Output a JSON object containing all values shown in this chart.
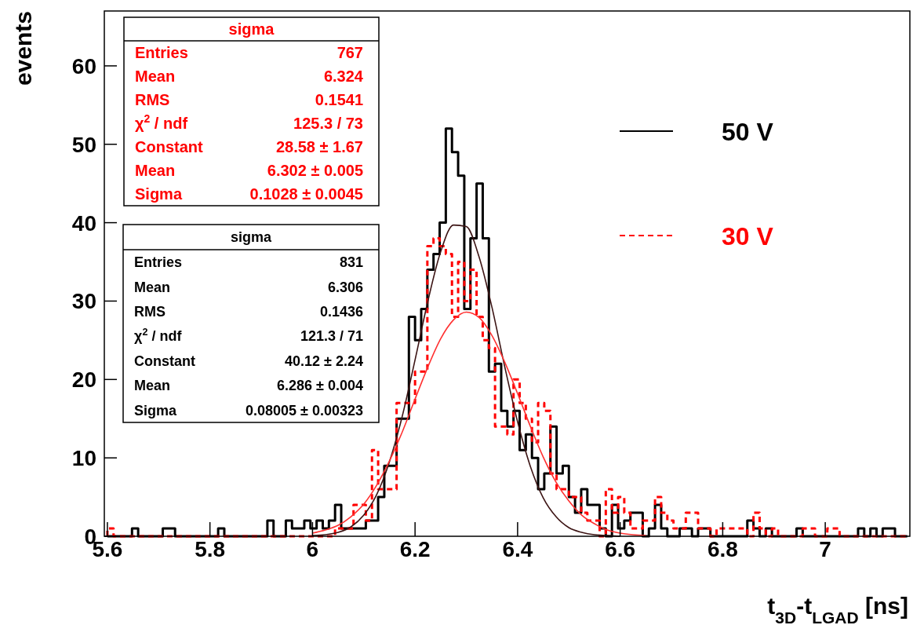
{
  "chart_data": {
    "type": "histogram",
    "xlabel": "t$_{3D}$-t$_{LGAD}$ [ns]",
    "ylabel": "events",
    "xlim": [
      5.594,
      7.165
    ],
    "xticks": [
      5.6,
      5.8,
      6,
      6.2,
      6.4,
      6.6,
      6.8,
      7
    ],
    "ylim": [
      0,
      67
    ],
    "yticks": [
      0,
      10,
      20,
      30,
      40,
      50,
      60
    ],
    "grid": false,
    "legend": "top right",
    "bins": [
      5.6,
      5.612,
      5.624,
      5.636,
      5.648,
      5.66,
      5.672,
      5.684,
      5.696,
      5.708,
      5.72,
      5.732,
      5.744,
      5.756,
      5.768,
      5.78,
      5.792,
      5.804,
      5.816,
      5.828,
      5.84,
      5.852,
      5.864,
      5.876,
      5.888,
      5.9,
      5.912,
      5.924,
      5.936,
      5.948,
      5.96,
      5.972,
      5.984,
      5.996,
      6.008,
      6.02,
      6.032,
      6.044,
      6.056,
      6.068,
      6.08,
      6.092,
      6.104,
      6.116,
      6.128,
      6.14,
      6.152,
      6.164,
      6.176,
      6.188,
      6.2,
      6.212,
      6.224,
      6.236,
      6.248,
      6.26,
      6.272,
      6.284,
      6.296,
      6.308,
      6.32,
      6.332,
      6.344,
      6.356,
      6.368,
      6.38,
      6.392,
      6.404,
      6.416,
      6.428,
      6.44,
      6.452,
      6.464,
      6.476,
      6.488,
      6.5,
      6.512,
      6.524,
      6.536,
      6.548,
      6.56,
      6.572,
      6.584,
      6.596,
      6.608,
      6.62,
      6.632,
      6.644,
      6.656,
      6.668,
      6.68,
      6.692,
      6.704,
      6.716,
      6.728,
      6.74,
      6.752,
      6.764,
      6.776,
      6.788,
      6.8,
      6.812,
      6.824,
      6.836,
      6.848,
      6.86,
      6.872,
      6.884,
      6.896,
      6.908,
      6.92,
      6.932,
      6.944,
      6.956,
      6.968,
      6.98,
      6.992,
      7.004,
      7.016,
      7.028,
      7.04,
      7.052,
      7.064,
      7.076,
      7.088,
      7.1,
      7.112,
      7.124,
      7.136,
      7.148,
      7.16
    ],
    "series": [
      {
        "name": "50 V",
        "color": "#000000",
        "line_style": "solid",
        "values": [
          0,
          0,
          0,
          0,
          1,
          0,
          0,
          0,
          0,
          1,
          1,
          0,
          0,
          0,
          0,
          0,
          0,
          0,
          1,
          0,
          0,
          0,
          0,
          0,
          0,
          0,
          2,
          0,
          0,
          2,
          1,
          1,
          2,
          1,
          2,
          1,
          2,
          4,
          1,
          1,
          1,
          1,
          2,
          2,
          5,
          9,
          9,
          15,
          15,
          28,
          25,
          29,
          34,
          36,
          40,
          52,
          49,
          46,
          29,
          38,
          45,
          38,
          21,
          22,
          16,
          14,
          16,
          11,
          13,
          10,
          6,
          8,
          14,
          8,
          9,
          5,
          3,
          6,
          4,
          4,
          1,
          0,
          4,
          1,
          2,
          3,
          3,
          0,
          1,
          4,
          1,
          0,
          0,
          1,
          1,
          0,
          1,
          1,
          0,
          0,
          0,
          0,
          0,
          0,
          2,
          1,
          0,
          1,
          0,
          0,
          0,
          0,
          1,
          0,
          0,
          0,
          0,
          0,
          0,
          0,
          0,
          0,
          1,
          0,
          1,
          0,
          1,
          1,
          0,
          0
        ]
      },
      {
        "name": "30 V",
        "color": "#ff0000",
        "line_style": "dashed",
        "values": [
          1,
          0,
          0,
          0,
          0,
          0,
          0,
          0,
          0,
          0,
          0,
          0,
          0,
          0,
          0,
          0,
          0,
          0,
          0,
          0,
          0,
          0,
          0,
          0,
          0,
          0,
          0,
          0,
          0,
          0,
          0,
          0,
          0,
          0,
          0,
          0,
          0,
          1,
          1,
          1,
          4,
          4,
          2,
          11,
          6,
          6,
          6,
          17,
          17,
          17,
          21,
          21,
          37,
          38,
          37,
          36,
          28,
          35,
          30,
          34,
          28,
          25,
          24,
          14,
          14,
          13,
          20,
          17,
          15,
          12,
          17,
          16,
          8,
          6,
          6,
          5,
          5,
          3,
          2,
          2,
          0,
          6,
          3,
          5,
          3,
          1,
          1,
          2,
          2,
          5,
          3,
          2,
          1,
          1,
          3,
          3,
          1,
          1,
          0,
          1,
          1,
          1,
          1,
          1,
          0,
          3,
          1,
          0,
          1,
          0,
          0,
          0,
          0,
          1,
          1,
          0,
          0,
          1,
          1,
          0,
          0,
          0,
          0,
          0,
          0,
          0,
          0,
          0,
          0,
          0
        ]
      },
      {
        "type": "line",
        "color": "#3c1414",
        "line_style": "solid",
        "x": [
          6,
          6.025,
          6.05,
          6.075,
          6.1,
          6.125,
          6.15,
          6.175,
          6.2,
          6.225,
          6.25,
          6.275,
          6.3,
          6.325,
          6.35,
          6.375,
          6.4,
          6.425,
          6.45,
          6.475,
          6.5,
          6.525,
          6.55,
          6.575,
          6.6
        ],
        "values": [
          0.1,
          0.2,
          0.5,
          1.2,
          2.7,
          5.3,
          9.5,
          15.3,
          22.5,
          30,
          36.3,
          39.7,
          39.5,
          35.6,
          29.2,
          21.6,
          14.6,
          8.9,
          4.9,
          2.5,
          1.1,
          0.5,
          0.2,
          0.1,
          0
        ]
      },
      {
        "type": "line",
        "color": "#ff3030",
        "line_style": "solid",
        "x": [
          6,
          6.025,
          6.05,
          6.075,
          6.1,
          6.125,
          6.15,
          6.175,
          6.2,
          6.225,
          6.25,
          6.275,
          6.3,
          6.325,
          6.35,
          6.375,
          6.4,
          6.425,
          6.45,
          6.475,
          6.5,
          6.525,
          6.55,
          6.575,
          6.6,
          6.625,
          6.65
        ],
        "values": [
          0.4,
          0.8,
          1.4,
          2.5,
          4.1,
          6.5,
          9.6,
          13.3,
          17.5,
          21.6,
          25.2,
          27.6,
          28.6,
          27.9,
          25.6,
          22.2,
          18.2,
          14,
          10.1,
          6.9,
          4.5,
          2.7,
          1.6,
          0.8,
          0.4,
          0.2,
          0.1
        ]
      }
    ],
    "annotations": [
      "sigma",
      "Entries",
      "767",
      "Mean",
      "6.324",
      "RMS",
      "0.1541",
      "χ$^{2}$ / ndf",
      "125.3 / 73",
      "Constant",
      "28.58 ± 1.67",
      "Mean",
      "6.302 ± 0.005",
      "Sigma",
      "0.1028 ± 0.0045",
      "sigma",
      "Entries",
      "831",
      "Mean",
      "6.306",
      "RMS",
      "0.1436",
      "χ$^{2}$ / ndf",
      "121.3 / 71",
      "Constant",
      "40.12 ± 2.24",
      "Mean",
      "6.286 ± 0.004",
      "Sigma",
      "0.08005 ± 0.00323"
    ]
  }
}
